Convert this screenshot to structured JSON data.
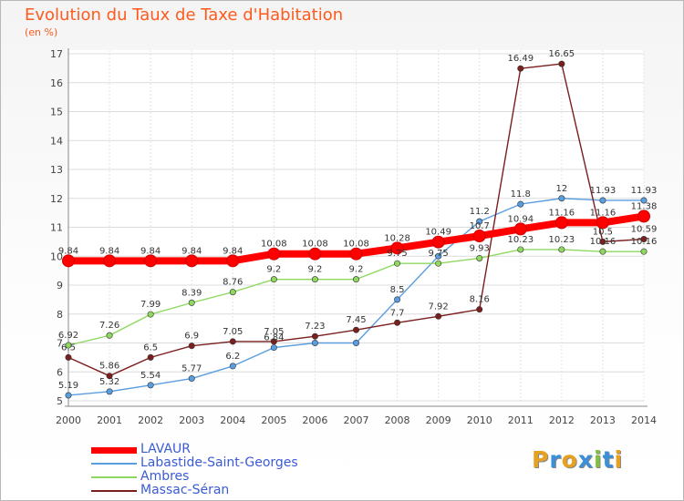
{
  "title": "Evolution du Taux de Taxe d'Habitation",
  "subtitle": "(en %)",
  "logo": {
    "text": "Proxiti",
    "colors": [
      "#e8a020",
      "#3a8fd8",
      "#e8a020",
      "#3a8fd8",
      "#80c040",
      "#3a8fd8",
      "#e8a020"
    ]
  },
  "chart_data": {
    "type": "line",
    "x": [
      2000,
      2001,
      2002,
      2003,
      2004,
      2005,
      2006,
      2007,
      2008,
      2009,
      2010,
      2011,
      2012,
      2013,
      2014
    ],
    "ylim": [
      5,
      17
    ],
    "yticks": [
      5,
      6,
      7,
      8,
      9,
      10,
      11,
      12,
      13,
      14,
      15,
      16,
      17
    ],
    "grid": true,
    "legend": "bottom-left",
    "series": [
      {
        "name": "LAVAUR",
        "color": "#ff0000",
        "values": [
          9.84,
          9.84,
          9.84,
          9.84,
          9.84,
          10.08,
          10.08,
          10.08,
          10.28,
          10.49,
          10.7,
          10.94,
          11.16,
          11.16,
          11.38
        ],
        "labels": [
          "9.84",
          "9.84",
          "9.84",
          "9.84",
          "9.84",
          "10.08",
          "10.08",
          "10.08",
          "10.28",
          "10.49",
          "10.7",
          "10.94",
          "11.16",
          "11.16",
          "11.38"
        ]
      },
      {
        "name": "Labastide-Saint-Georges",
        "color": "#5a9ee0",
        "values": [
          5.19,
          5.32,
          5.54,
          5.77,
          6.2,
          6.84,
          7.0,
          7.0,
          8.5,
          10.0,
          11.2,
          11.8,
          12.0,
          11.93,
          11.93
        ],
        "labels": [
          "5.19",
          "5.32",
          "5.54",
          "5.77",
          "6.2",
          "6.84",
          "",
          "",
          "8.5",
          "",
          "11.2",
          "11.8",
          "12",
          "11.93",
          "11.93"
        ]
      },
      {
        "name": "Ambres",
        "color": "#8fd860",
        "values": [
          6.92,
          7.26,
          7.99,
          8.39,
          8.76,
          9.2,
          9.2,
          9.2,
          9.75,
          9.75,
          9.93,
          10.23,
          10.23,
          10.16,
          10.16
        ],
        "labels": [
          "6.92",
          "7.26",
          "7.99",
          "8.39",
          "8.76",
          "9.2",
          "9.2",
          "9.2",
          "9.75",
          "9.75",
          "9.93",
          "10.23",
          "10.23",
          "10.16",
          "10.16"
        ]
      },
      {
        "name": "Massac-Séran",
        "color": "#7a1e1e",
        "values": [
          6.5,
          5.86,
          6.5,
          6.9,
          7.05,
          7.05,
          7.23,
          7.45,
          7.7,
          7.92,
          8.16,
          16.49,
          16.65,
          10.5,
          10.59
        ],
        "labels": [
          "6.5",
          "5.86",
          "6.5",
          "6.9",
          "7.05",
          "7.05",
          "7.23",
          "7.45",
          "7.7",
          "7.92",
          "8.16",
          "16.49",
          "16.65",
          "10.5",
          "10.59"
        ]
      }
    ]
  }
}
